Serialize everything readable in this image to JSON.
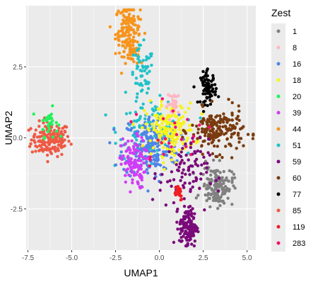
{
  "chart_data": {
    "type": "scatter",
    "title": "",
    "xlabel": "UMAP1",
    "ylabel": "UMAP2",
    "xlim": [
      -7.6,
      5.5
    ],
    "ylim": [
      -3.95,
      4.65
    ],
    "x_ticks": [
      -7.5,
      -5.0,
      -2.5,
      0.0,
      2.5,
      5.0
    ],
    "x_tick_labels": [
      "-7.5",
      "-5.0",
      "-2.5",
      "0.0",
      "2.5",
      "5.0"
    ],
    "y_ticks": [
      -2.5,
      0.0,
      2.5
    ],
    "y_tick_labels": [
      "-2.5",
      "0.0",
      "2.5"
    ],
    "grid": true,
    "panel_background": "#EBEBEB",
    "legend": {
      "title": "Zest",
      "placement": "right",
      "entries": [
        {
          "label": "1",
          "color": "#808080"
        },
        {
          "label": "8",
          "color": "#FFB6C1"
        },
        {
          "label": "16",
          "color": "#4F84E8"
        },
        {
          "label": "18",
          "color": "#F7F31A"
        },
        {
          "label": "20",
          "color": "#22F25C"
        },
        {
          "label": "39",
          "color": "#D03CF5"
        },
        {
          "label": "44",
          "color": "#F7941D"
        },
        {
          "label": "51",
          "color": "#21C2C9"
        },
        {
          "label": "59",
          "color": "#7A0A7A"
        },
        {
          "label": "60",
          "color": "#7A3B0F"
        },
        {
          "label": "77",
          "color": "#000000"
        },
        {
          "label": "85",
          "color": "#EE5A45"
        },
        {
          "label": "119",
          "color": "#F01E23"
        },
        {
          "label": "283",
          "color": "#F2106E"
        }
      ]
    },
    "clusters": [
      {
        "group": "85",
        "center": [
          -6.2,
          -0.05
        ],
        "spread": [
          0.55,
          0.3
        ],
        "n": 170
      },
      {
        "group": "20",
        "center": [
          -6.3,
          0.55
        ],
        "spread": [
          0.25,
          0.25
        ],
        "n": 30
      },
      {
        "group": "44",
        "center": [
          -1.8,
          3.8
        ],
        "spread": [
          0.35,
          0.45
        ],
        "n": 140
      },
      {
        "group": "44",
        "center": [
          -1.5,
          3.05
        ],
        "spread": [
          0.25,
          0.25
        ],
        "n": 40
      },
      {
        "group": "51",
        "center": [
          -1.0,
          2.1
        ],
        "spread": [
          0.35,
          0.55
        ],
        "n": 60
      },
      {
        "group": "51",
        "center": [
          -0.5,
          0.3
        ],
        "spread": [
          0.9,
          0.5
        ],
        "n": 110
      },
      {
        "group": "16",
        "center": [
          -0.5,
          -0.3
        ],
        "spread": [
          0.8,
          0.55
        ],
        "n": 200
      },
      {
        "group": "39",
        "center": [
          -1.5,
          -0.9
        ],
        "spread": [
          0.35,
          0.45
        ],
        "n": 110
      },
      {
        "group": "18",
        "center": [
          0.6,
          0.3
        ],
        "spread": [
          0.7,
          0.45
        ],
        "n": 170
      },
      {
        "group": "8",
        "center": [
          0.85,
          1.2
        ],
        "spread": [
          0.2,
          0.2
        ],
        "n": 30
      },
      {
        "group": "77",
        "center": [
          2.8,
          1.75
        ],
        "spread": [
          0.22,
          0.28
        ],
        "n": 80
      },
      {
        "group": "60",
        "center": [
          3.3,
          0.25
        ],
        "spread": [
          0.75,
          0.38
        ],
        "n": 190
      },
      {
        "group": "1",
        "center": [
          3.3,
          -1.7
        ],
        "spread": [
          0.45,
          0.35
        ],
        "n": 140
      },
      {
        "group": "59",
        "center": [
          1.4,
          -1.25
        ],
        "spread": [
          0.7,
          0.6
        ],
        "n": 90
      },
      {
        "group": "59",
        "center": [
          1.65,
          -3.15
        ],
        "spread": [
          0.25,
          0.35
        ],
        "n": 140
      },
      {
        "group": "119",
        "center": [
          1.05,
          -1.9
        ],
        "spread": [
          0.15,
          0.15
        ],
        "n": 25
      },
      {
        "group": "283",
        "center": [
          0.8,
          0.2
        ],
        "spread": [
          1.2,
          0.7
        ],
        "n": 25
      }
    ]
  }
}
